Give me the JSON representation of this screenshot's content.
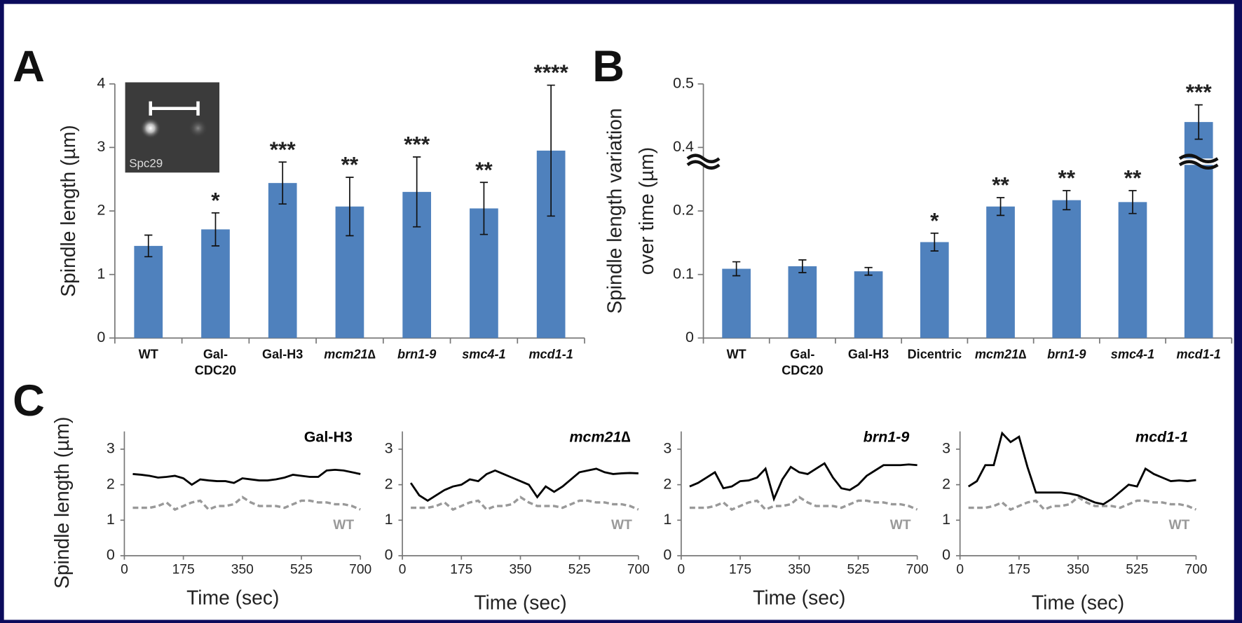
{
  "chart_data": [
    {
      "type": "bar",
      "panel": "A",
      "ylabel": [
        "Spindle length (µm)"
      ],
      "inset_label": "Spc29",
      "categories": [
        "WT",
        "Gal-\nCDC20",
        "Gal-H3",
        "mcm21∆",
        "brn1-9",
        "smc4-1",
        "mcd1-1"
      ],
      "italic_categories": [
        3,
        4,
        5,
        6
      ],
      "values": [
        1.45,
        1.71,
        2.44,
        2.07,
        2.3,
        2.04,
        2.95
      ],
      "errors": [
        0.17,
        0.26,
        0.33,
        0.46,
        0.55,
        0.41,
        1.03
      ],
      "annotations": [
        null,
        "*",
        "***",
        "**",
        "***",
        "**",
        "****"
      ],
      "color": "#4f81bd",
      "ylim": [
        0,
        4
      ],
      "yticks": [
        0,
        1,
        2,
        3,
        4
      ]
    },
    {
      "type": "bar",
      "panel": "B",
      "ylabel": [
        "Spindle length variation",
        "over time (µm)"
      ],
      "categories": [
        "WT",
        "Gal-\nCDC20",
        "Gal-H3",
        "Dicentric",
        "mcm21∆",
        "brn1-9",
        "smc4-1",
        "mcd1-1"
      ],
      "italic_categories": [
        4,
        5,
        6,
        7
      ],
      "values": [
        0.109,
        0.113,
        0.105,
        0.151,
        0.207,
        0.217,
        0.214,
        0.44
      ],
      "errors": [
        0.011,
        0.01,
        0.006,
        0.014,
        0.014,
        0.015,
        0.018,
        0.027
      ],
      "annotations": [
        null,
        null,
        null,
        "*",
        "**",
        "**",
        "**",
        "***"
      ],
      "color": "#4f81bd",
      "ylim": [
        0,
        0.5
      ],
      "y_break": [
        0.3,
        0.4
      ],
      "yticks": [
        0,
        0.1,
        0.2,
        0.4,
        0.5
      ]
    },
    {
      "type": "line",
      "panel": "C",
      "ylabel": [
        "Spindle length (µm)"
      ],
      "xlabel": "Time (sec)",
      "x": [
        25,
        50,
        75,
        100,
        125,
        150,
        175,
        200,
        225,
        250,
        275,
        300,
        325,
        350,
        375,
        400,
        425,
        450,
        475,
        500,
        525,
        550,
        575,
        600,
        625,
        650,
        675,
        700
      ],
      "xlim": [
        0,
        700
      ],
      "xticks": [
        0,
        175,
        350,
        525,
        700
      ],
      "ylim": [
        0,
        3.5
      ],
      "yticks": [
        0,
        1,
        2,
        3
      ],
      "series": [
        {
          "name": "Gal-H3",
          "color": "#000000",
          "italic": false,
          "values": [
            2.3,
            2.28,
            2.25,
            2.2,
            2.22,
            2.25,
            2.18,
            2.0,
            2.15,
            2.12,
            2.1,
            2.1,
            2.05,
            2.18,
            2.15,
            2.12,
            2.12,
            2.15,
            2.2,
            2.28,
            2.25,
            2.22,
            2.22,
            2.4,
            2.42,
            2.4,
            2.35,
            2.3
          ]
        },
        {
          "name": "WT",
          "color": "#999999",
          "dashed": true,
          "values": [
            1.35,
            1.35,
            1.35,
            1.4,
            1.5,
            1.3,
            1.4,
            1.5,
            1.55,
            1.3,
            1.4,
            1.4,
            1.45,
            1.65,
            1.5,
            1.4,
            1.4,
            1.4,
            1.35,
            1.45,
            1.55,
            1.55,
            1.5,
            1.5,
            1.45,
            1.45,
            1.4,
            1.3
          ]
        }
      ]
    },
    {
      "type": "line",
      "xlabel": "Time (sec)",
      "x": [
        25,
        50,
        75,
        100,
        125,
        150,
        175,
        200,
        225,
        250,
        275,
        300,
        325,
        350,
        375,
        400,
        425,
        450,
        475,
        500,
        525,
        550,
        575,
        600,
        625,
        650,
        675,
        700
      ],
      "xlim": [
        0,
        700
      ],
      "xticks": [
        0,
        175,
        350,
        525,
        700
      ],
      "ylim": [
        0,
        3.5
      ],
      "yticks": [
        0,
        1,
        2,
        3
      ],
      "series": [
        {
          "name": "mcm21∆",
          "color": "#000000",
          "italic": true,
          "values": [
            2.05,
            1.7,
            1.55,
            1.7,
            1.85,
            1.95,
            2.0,
            2.15,
            2.1,
            2.3,
            2.4,
            2.3,
            2.2,
            2.1,
            2.0,
            1.65,
            1.95,
            1.8,
            1.95,
            2.15,
            2.35,
            2.4,
            2.45,
            2.35,
            2.3,
            2.32,
            2.33,
            2.32
          ]
        },
        {
          "name": "WT",
          "color": "#999999",
          "dashed": true,
          "values": [
            1.35,
            1.35,
            1.35,
            1.4,
            1.5,
            1.3,
            1.4,
            1.5,
            1.55,
            1.3,
            1.4,
            1.4,
            1.45,
            1.65,
            1.5,
            1.4,
            1.4,
            1.4,
            1.35,
            1.45,
            1.55,
            1.55,
            1.5,
            1.5,
            1.45,
            1.45,
            1.4,
            1.3
          ]
        }
      ]
    },
    {
      "type": "line",
      "xlabel": "Time (sec)",
      "x": [
        25,
        50,
        75,
        100,
        125,
        150,
        175,
        200,
        225,
        250,
        275,
        300,
        325,
        350,
        375,
        400,
        425,
        450,
        475,
        500,
        525,
        550,
        575,
        600,
        625,
        650,
        675,
        700
      ],
      "xlim": [
        0,
        700
      ],
      "xticks": [
        0,
        175,
        350,
        525,
        700
      ],
      "ylim": [
        0,
        3.5
      ],
      "yticks": [
        0,
        1,
        2,
        3
      ],
      "series": [
        {
          "name": "brn1-9",
          "color": "#000000",
          "italic": true,
          "values": [
            1.95,
            2.05,
            2.2,
            2.35,
            1.9,
            1.95,
            2.1,
            2.12,
            2.2,
            2.45,
            1.6,
            2.15,
            2.5,
            2.35,
            2.3,
            2.45,
            2.6,
            2.2,
            1.9,
            1.85,
            2.0,
            2.25,
            2.4,
            2.55,
            2.55,
            2.55,
            2.57,
            2.55
          ]
        },
        {
          "name": "WT",
          "color": "#999999",
          "dashed": true,
          "values": [
            1.35,
            1.35,
            1.35,
            1.4,
            1.5,
            1.3,
            1.4,
            1.5,
            1.55,
            1.3,
            1.4,
            1.4,
            1.45,
            1.65,
            1.5,
            1.4,
            1.4,
            1.4,
            1.35,
            1.45,
            1.55,
            1.55,
            1.5,
            1.5,
            1.45,
            1.45,
            1.4,
            1.3
          ]
        }
      ]
    },
    {
      "type": "line",
      "xlabel": "Time (sec)",
      "x": [
        25,
        50,
        75,
        100,
        125,
        150,
        175,
        200,
        225,
        250,
        275,
        300,
        325,
        350,
        375,
        400,
        425,
        450,
        475,
        500,
        525,
        550,
        575,
        600,
        625,
        650,
        675,
        700
      ],
      "xlim": [
        0,
        700
      ],
      "xticks": [
        0,
        175,
        350,
        525,
        700
      ],
      "ylim": [
        0,
        3.5
      ],
      "yticks": [
        0,
        1,
        2,
        3
      ],
      "series": [
        {
          "name": "mcd1-1",
          "color": "#000000",
          "italic": true,
          "values": [
            1.95,
            2.1,
            2.55,
            2.55,
            3.45,
            3.2,
            3.35,
            2.5,
            1.78,
            1.78,
            1.78,
            1.78,
            1.75,
            1.7,
            1.6,
            1.5,
            1.45,
            1.6,
            1.8,
            2.0,
            1.95,
            2.45,
            2.3,
            2.2,
            2.1,
            2.12,
            2.1,
            2.13
          ]
        },
        {
          "name": "WT",
          "color": "#999999",
          "dashed": true,
          "values": [
            1.35,
            1.35,
            1.35,
            1.4,
            1.5,
            1.3,
            1.4,
            1.5,
            1.55,
            1.3,
            1.4,
            1.4,
            1.45,
            1.65,
            1.5,
            1.4,
            1.4,
            1.4,
            1.35,
            1.45,
            1.55,
            1.55,
            1.5,
            1.5,
            1.45,
            1.45,
            1.4,
            1.3
          ]
        }
      ]
    }
  ]
}
